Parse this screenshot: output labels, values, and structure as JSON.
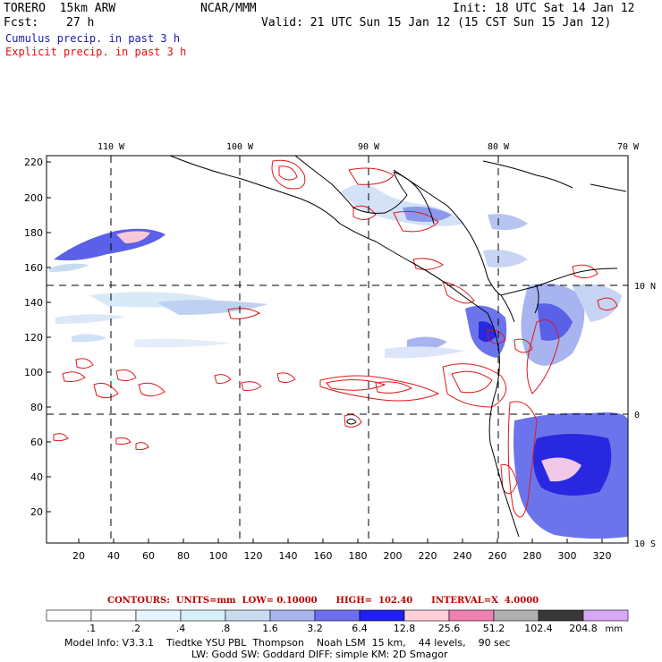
{
  "header": {
    "model": "TORERO  15km ARW",
    "org": "NCAR/MMM",
    "init": "Init: 18 UTC Sat 14 Jan 12",
    "fcst_label": "Fcst:",
    "fcst_value": "27 h",
    "valid": "Valid: 21 UTC Sun 15 Jan 12 (15 CST Sun 15 Jan 12)",
    "cumulus": "Cumulus precip. in past 3 h",
    "explicit": "Explicit precip. in past 3 h"
  },
  "map": {
    "lon_labels": [
      "110 W",
      "100 W",
      "90 W",
      "80 W",
      "70 W"
    ],
    "lat_labels_right": [
      "10 N",
      "0",
      "10 S"
    ],
    "y_ticks": [
      "220",
      "200",
      "180",
      "160",
      "140",
      "120",
      "100",
      "80",
      "60",
      "40",
      "20"
    ],
    "x_ticks": [
      "20",
      "40",
      "60",
      "80",
      "100",
      "120",
      "140",
      "160",
      "180",
      "200",
      "220",
      "240",
      "260",
      "280",
      "300",
      "320"
    ]
  },
  "contours_info": "CONTOURS:  UNITS=mm  LOW= 0.10000      HIGH=  102.40      INTERVAL=X  4.0000",
  "colorbar": {
    "labels": [
      ".1",
      ".2",
      ".4",
      ".8",
      "1.6",
      "3.2",
      "6.4",
      "12.8",
      "25.6",
      "51.2",
      "102.4",
      "204.8"
    ],
    "colors": [
      "#ffffff",
      "#ffffff",
      "#e8f4ff",
      "#d8f0f8",
      "#c8dcf0",
      "#a8b4f0",
      "#6c70f0",
      "#2020f0",
      "#ffd0d8",
      "#f080b0",
      "#b0b0b0",
      "#383838",
      "#d8a8f8"
    ],
    "unit": "mm"
  },
  "model_info_1": "Model Info: V3.3.1    Tiedtke YSU PBL  Thompson    Noah LSM  15 km,    44 levels,    90 sec",
  "model_info_2": "LW: Godd SW: Goddard DIFF: simple KM: 2D Smagor"
}
